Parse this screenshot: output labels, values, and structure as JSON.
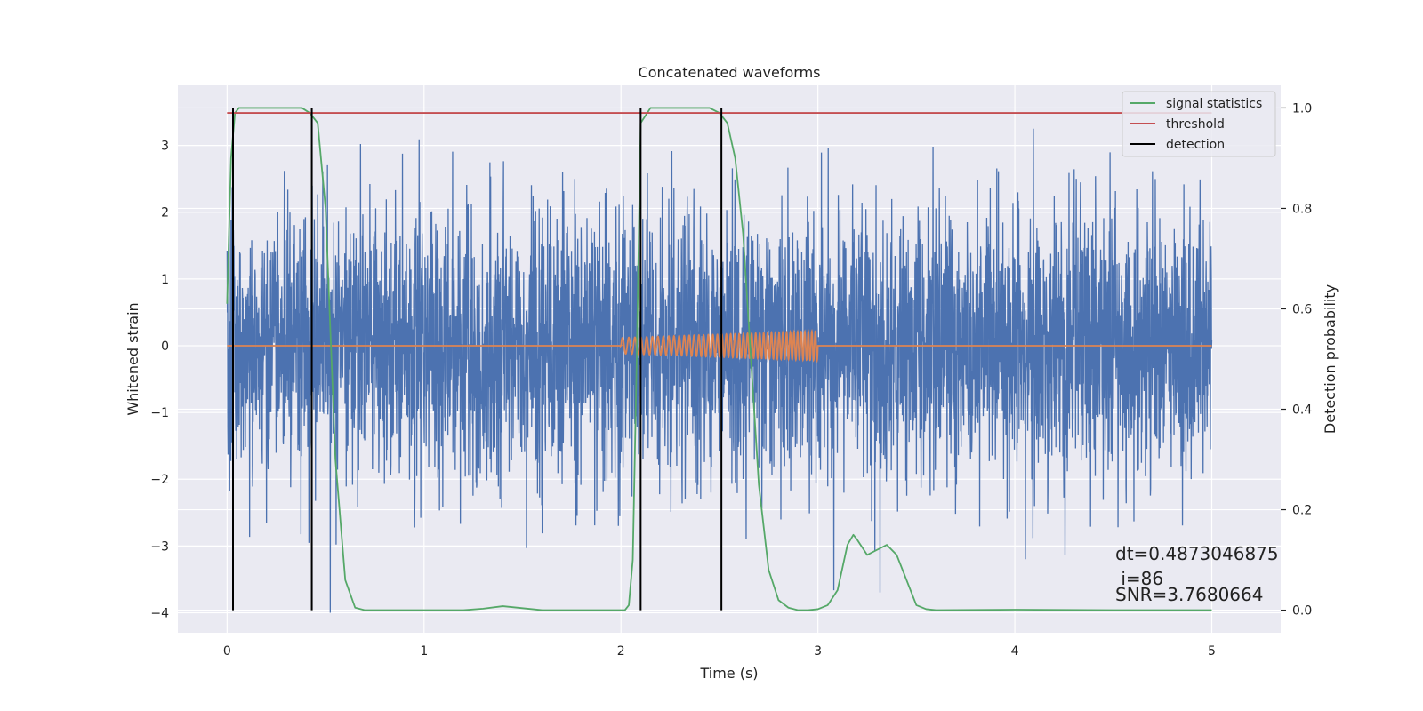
{
  "chart_data": {
    "type": "line",
    "title": "Concatenated waveforms",
    "xlabel": "Time (s)",
    "ylabel": "Whitened strain",
    "y2label": "Detection probability",
    "xlim": [
      -0.25,
      5.35
    ],
    "ylim": [
      -4.3,
      3.9
    ],
    "y2lim": [
      -0.045,
      1.045
    ],
    "xticks": [
      0,
      1,
      2,
      3,
      4,
      5
    ],
    "yticks": [
      -4,
      -3,
      -2,
      -1,
      0,
      1,
      2,
      3
    ],
    "y2ticks": [
      0.0,
      0.2,
      0.4,
      0.6,
      0.8,
      1.0
    ],
    "grid": true,
    "legend_position": "top-right",
    "colors": {
      "background": "#eaeaf2",
      "grid": "#ffffff",
      "strain": "#4c72b0",
      "template": "#dd8452",
      "signal_statistics": "#55a868",
      "threshold": "#c44e52",
      "detection": "#000000"
    },
    "series": [
      {
        "name": "",
        "role": "whitened strain noise",
        "axis": "left",
        "t_range": [
          0,
          5
        ],
        "typical_amplitude": 1.0,
        "peak_range": [
          -4.0,
          3.6
        ]
      },
      {
        "name": "",
        "role": "injected chirp template",
        "axis": "left",
        "t_start": 2.0,
        "t_end": 3.0,
        "amplitude_start": 0.12,
        "amplitude_end": 0.22,
        "cycles": 44
      },
      {
        "name": "signal statistics",
        "axis": "right",
        "x": [
          0,
          0.02,
          0.04,
          0.06,
          0.1,
          0.2,
          0.3,
          0.38,
          0.42,
          0.46,
          0.5,
          0.55,
          0.6,
          0.65,
          0.7,
          1.0,
          1.2,
          1.3,
          1.4,
          1.6,
          1.9,
          2.02,
          2.04,
          2.06,
          2.08,
          2.1,
          2.15,
          2.2,
          2.3,
          2.4,
          2.45,
          2.5,
          2.54,
          2.58,
          2.62,
          2.66,
          2.7,
          2.75,
          2.8,
          2.85,
          2.9,
          2.95,
          3.0,
          3.05,
          3.1,
          3.15,
          3.18,
          3.2,
          3.25,
          3.3,
          3.35,
          3.4,
          3.45,
          3.5,
          3.55,
          3.6,
          4.0,
          4.5,
          5.0
        ],
        "y": [
          0.61,
          0.9,
          0.99,
          1.0,
          1.0,
          1.0,
          1.0,
          1.0,
          0.99,
          0.97,
          0.8,
          0.3,
          0.06,
          0.005,
          0.0,
          0.0,
          0.0,
          0.003,
          0.008,
          0.0,
          0.0,
          0.0,
          0.01,
          0.1,
          0.5,
          0.97,
          1.0,
          1.0,
          1.0,
          1.0,
          1.0,
          0.99,
          0.97,
          0.9,
          0.75,
          0.5,
          0.25,
          0.08,
          0.02,
          0.005,
          0.0,
          0.0,
          0.002,
          0.01,
          0.04,
          0.13,
          0.15,
          0.14,
          0.11,
          0.12,
          0.13,
          0.11,
          0.06,
          0.01,
          0.002,
          0.0,
          0.001,
          0.0,
          0.0
        ]
      },
      {
        "name": "threshold",
        "axis": "right",
        "x": [
          0,
          5
        ],
        "y": [
          0.99,
          0.99
        ]
      },
      {
        "name": "detection",
        "axis": "right",
        "type": "vlines",
        "x": [
          0.03,
          0.43,
          2.1,
          2.51
        ],
        "ymin": 0.0,
        "ymax": 1.0
      }
    ],
    "annotations": [
      "dt=0.4873046875",
      " i=86",
      "SNR=3.7680664"
    ]
  }
}
